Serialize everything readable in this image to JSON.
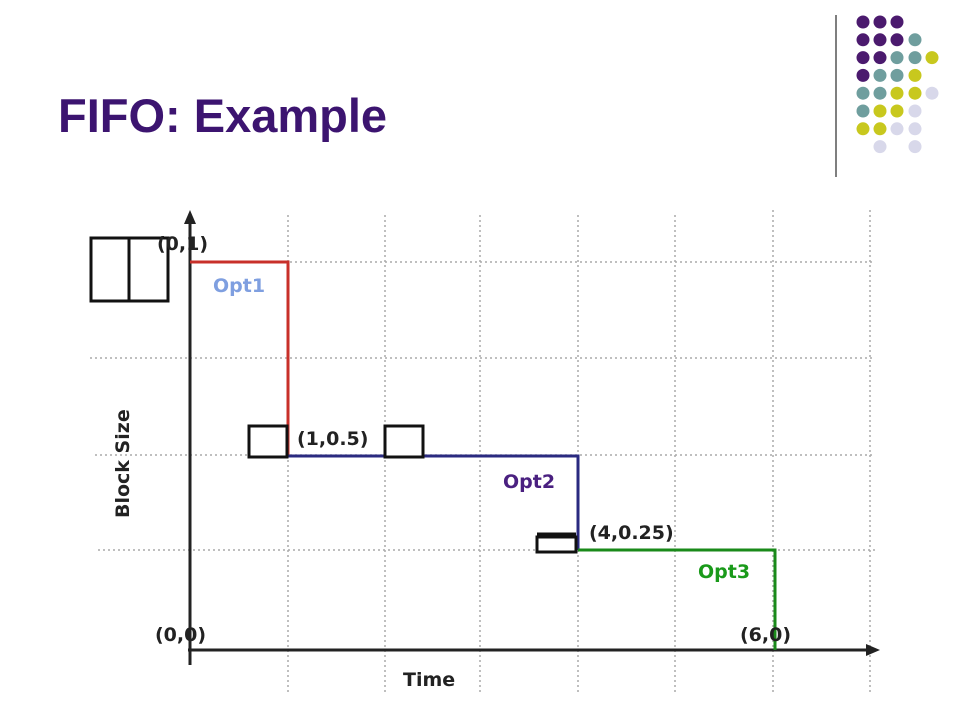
{
  "header": {
    "title": "FIFO: Example"
  },
  "diagram": {
    "y_axis_label": "Block Size",
    "x_axis_label": "Time",
    "points": [
      "(0,1)",
      "(1,0.5)",
      "(4,0.25)",
      "(0,0)",
      "(6,0)"
    ],
    "options": [
      "Opt1",
      "Opt2",
      "Opt3"
    ]
  }
}
